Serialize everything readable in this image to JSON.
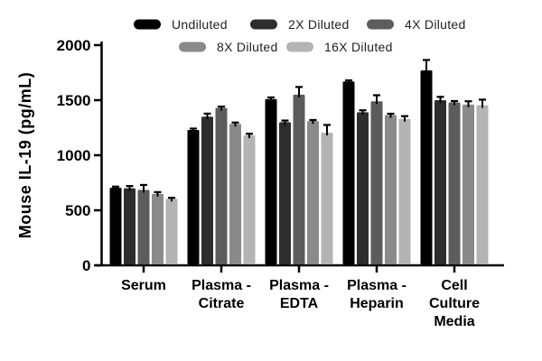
{
  "figure": {
    "background_color": "#ffffff",
    "axis_color": "#000000",
    "error_bar_color": "#000000"
  },
  "chart_data": {
    "type": "bar",
    "title": "",
    "xlabel": "",
    "ylabel": "Mouse IL-19 (pg/mL)",
    "ylim": [
      0,
      2000
    ],
    "yticks": [
      0,
      500,
      1000,
      1500,
      2000
    ],
    "grid": false,
    "legend_position": "top",
    "legend_rows": [
      [
        "Undiluted",
        "2X Diluted",
        "4X Diluted"
      ],
      [
        "8X Diluted",
        "16X Diluted"
      ]
    ],
    "categories": [
      "Serum",
      "Plasma - Citrate",
      "Plasma - EDTA",
      "Plasma - Heparin",
      "Cell Culture Media"
    ],
    "category_label_lines": [
      [
        "Serum"
      ],
      [
        "Plasma -",
        "Citrate"
      ],
      [
        "Plasma -",
        "EDTA"
      ],
      [
        "Plasma -",
        "Heparin"
      ],
      [
        "Cell",
        "Culture",
        "Media"
      ]
    ],
    "series": [
      {
        "name": "Undiluted",
        "color": "#000000",
        "values": [
          705,
          1230,
          1510,
          1670,
          1770
        ],
        "errors": [
          10,
          12,
          15,
          10,
          95
        ]
      },
      {
        "name": "2X Diluted",
        "color": "#2d2d2d",
        "values": [
          700,
          1350,
          1300,
          1390,
          1500
        ],
        "errors": [
          20,
          28,
          15,
          18,
          30
        ]
      },
      {
        "name": "4X Diluted",
        "color": "#5c5c5c",
        "values": [
          685,
          1430,
          1550,
          1490,
          1480
        ],
        "errors": [
          45,
          12,
          70,
          55,
          12
        ]
      },
      {
        "name": "8X Diluted",
        "color": "#8a8a8a",
        "values": [
          650,
          1285,
          1310,
          1365,
          1460
        ],
        "errors": [
          15,
          12,
          10,
          12,
          30
        ]
      },
      {
        "name": "16X Diluted",
        "color": "#b3b3b3",
        "values": [
          605,
          1180,
          1205,
          1330,
          1455
        ],
        "errors": [
          8,
          15,
          70,
          25,
          50
        ]
      }
    ]
  }
}
